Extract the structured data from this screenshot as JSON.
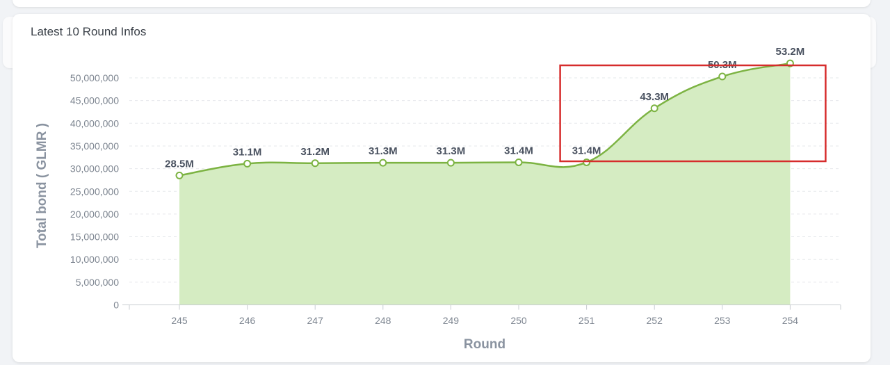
{
  "card": {
    "title": "Latest 10 Round Infos"
  },
  "colors": {
    "line": "#7cb342",
    "area": "#d5ecc2",
    "highlight": "#d62c2c",
    "grid": "#e6e8eb"
  },
  "chart_data": {
    "type": "area",
    "title": "Latest 10 Round Infos",
    "xlabel": "Round",
    "ylabel": "Total bond ( GLMR )",
    "categories": [
      "245",
      "246",
      "247",
      "248",
      "249",
      "250",
      "251",
      "252",
      "253",
      "254"
    ],
    "values": [
      28500000,
      31100000,
      31200000,
      31300000,
      31300000,
      31400000,
      31400000,
      43300000,
      50300000,
      53200000
    ],
    "data_labels": [
      "28.5M",
      "31.1M",
      "31.2M",
      "31.3M",
      "31.3M",
      "31.4M",
      "31.4M",
      "43.3M",
      "50.3M",
      "53.2M"
    ],
    "yticks": [
      "0",
      "5,000,000",
      "10,000,000",
      "15,000,000",
      "20,000,000",
      "25,000,000",
      "30,000,000",
      "35,000,000",
      "40,000,000",
      "45,000,000",
      "50,000,000"
    ],
    "ylim": [
      0,
      50000000
    ],
    "grid": true,
    "legend": "none",
    "highlight_box": {
      "from_category": "251",
      "to_category": "254"
    }
  }
}
